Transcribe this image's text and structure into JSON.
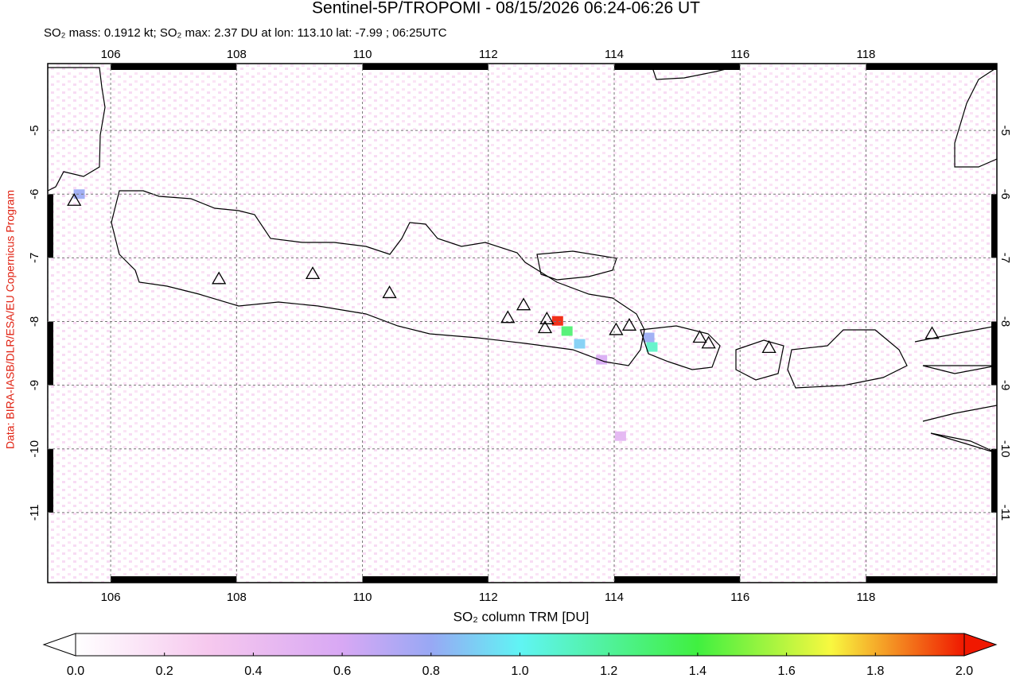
{
  "chart_data": {
    "type": "map",
    "title": "Sentinel-5P/TROPOMI - 08/15/2026 06:24-06:26 UT",
    "subtitle": "SO₂ mass: 0.1912 kt; SO₂ max: 2.37 DU at lon: 113.10 lat: -7.99 ; 06:25UTC",
    "side_label": "Data: BIRA-IASB/DLR/ESA/EU Copernicus Program",
    "xlim": [
      105,
      120.08
    ],
    "ylim": [
      -12.1,
      -3.95
    ],
    "xticks": [
      106,
      108,
      110,
      112,
      114,
      116,
      118
    ],
    "yticks": [
      -5,
      -6,
      -7,
      -8,
      -9,
      -10,
      -11
    ],
    "grid": true,
    "volcanoes": {
      "lon": [
        105.42,
        107.72,
        109.21,
        110.43,
        112.31,
        112.56,
        112.93,
        112.9,
        114.03,
        114.24,
        115.36,
        115.5,
        116.46,
        119.05
      ],
      "lat": [
        -6.1,
        -7.33,
        -7.25,
        -7.55,
        -7.94,
        -7.74,
        -7.96,
        -8.1,
        -8.13,
        -8.06,
        -8.25,
        -8.34,
        -8.41,
        -8.19
      ]
    },
    "so2": {
      "lon": [
        113.1,
        113.25,
        113.45,
        114.6,
        114.55,
        105.5,
        113.8,
        114.1
      ],
      "lat": [
        -7.99,
        -8.15,
        -8.35,
        -8.4,
        -8.25,
        -6.0,
        -8.6,
        -9.8
      ],
      "values": [
        2.0,
        1.3,
        0.9,
        1.1,
        0.8,
        0.8,
        0.6,
        0.5
      ]
    },
    "colorbar": {
      "label": "SO₂ column TRM [DU]",
      "lim": [
        0,
        2
      ],
      "ticks": [
        {
          "value": 0,
          "label": "0.0"
        },
        {
          "value": 0.2,
          "label": "0.2"
        },
        {
          "value": 0.4,
          "label": "0.4"
        },
        {
          "value": 0.6,
          "label": "0.6"
        },
        {
          "value": 0.8,
          "label": "0.8"
        },
        {
          "value": 1,
          "label": "1.0"
        },
        {
          "value": 1.2,
          "label": "1.2"
        },
        {
          "value": 1.4,
          "label": "1.4"
        },
        {
          "value": 1.6,
          "label": "1.6"
        },
        {
          "value": 1.8,
          "label": "1.8"
        },
        {
          "value": 2,
          "label": "2.0"
        }
      ]
    }
  }
}
